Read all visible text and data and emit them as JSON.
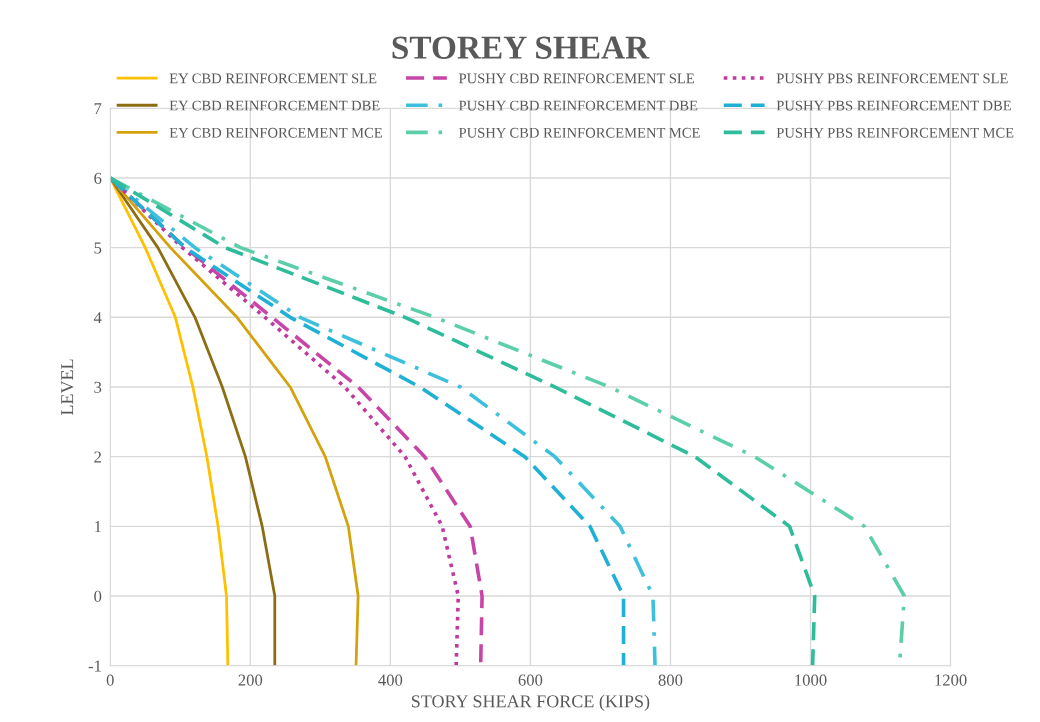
{
  "chart_data": {
    "type": "line",
    "title": "STOREY SHEAR",
    "xlabel": "STORY SHEAR FORCE (KIPS)",
    "ylabel": "LEVEL",
    "xlim": [
      0,
      1200
    ],
    "xticks": [
      0,
      200,
      400,
      600,
      800,
      1000,
      1200
    ],
    "ylim": [
      -1,
      7
    ],
    "yticks": [
      -1,
      0,
      1,
      2,
      3,
      4,
      5,
      6,
      7
    ],
    "grid": true,
    "legend": "top",
    "marker": "none",
    "series": [
      {
        "name": "EY CBD REINFORCEMENT SLE",
        "color": "#ffc000",
        "line_style": "solid",
        "x": [
          0,
          50,
          93,
          118,
          138,
          154,
          166,
          168
        ],
        "values": [
          6,
          5,
          4,
          3,
          2,
          1,
          0,
          -1
        ]
      },
      {
        "name": "EY CBD REINFORCEMENT DBE",
        "color": "#8c6d12",
        "line_style": "solid",
        "x": [
          0,
          68,
          121,
          160,
          193,
          217,
          235,
          235
        ],
        "values": [
          6,
          5,
          4,
          3,
          2,
          1,
          0,
          -1
        ]
      },
      {
        "name": "EY CBD REINFORCEMENT MCE",
        "color": "#d4a20c",
        "line_style": "solid",
        "x": [
          0,
          86,
          181,
          257,
          307,
          340,
          354,
          351
        ],
        "values": [
          6,
          5,
          4,
          3,
          2,
          1,
          0,
          -1
        ]
      },
      {
        "name": "PUSHY CBD REINFORCEMENT SLE",
        "color": "#c845a8",
        "line_style": "dashed",
        "x": [
          0,
          107,
          231,
          354,
          449,
          514,
          531,
          529
        ],
        "values": [
          6,
          5,
          4,
          3,
          2,
          1,
          0,
          -1
        ]
      },
      {
        "name": "PUSHY CBD REINFORCEMENT DBE",
        "color": "#3cc0dc",
        "line_style": "dashdot",
        "x": [
          0,
          121,
          271,
          500,
          635,
          728,
          775,
          778
        ],
        "values": [
          6,
          5,
          4,
          3,
          2,
          1,
          0,
          -1
        ]
      },
      {
        "name": "PUSHY CBD REINFORCEMENT MCE",
        "color": "#5ccfaa",
        "line_style": "dashdot",
        "x": [
          0,
          186,
          464,
          713,
          920,
          1077,
          1134,
          1127
        ],
        "values": [
          6,
          5,
          4,
          3,
          2,
          1,
          0,
          -1
        ]
      },
      {
        "name": "PUSHY PBS REINFORCEMENT SLE",
        "color": "#c03a9e",
        "line_style": "dotted",
        "x": [
          0,
          103,
          221,
          335,
          421,
          474,
          497,
          494
        ],
        "values": [
          6,
          5,
          4,
          3,
          2,
          1,
          0,
          -1
        ]
      },
      {
        "name": "PUSHY PBS REINFORCEMENT DBE",
        "color": "#1fb0d6",
        "line_style": "dashed",
        "x": [
          0,
          107,
          257,
          442,
          592,
          685,
          733,
          733
        ],
        "values": [
          6,
          5,
          4,
          3,
          2,
          1,
          0,
          -1
        ]
      },
      {
        "name": "PUSHY PBS REINFORCEMENT MCE",
        "color": "#2ebd9a",
        "line_style": "dashed",
        "x": [
          0,
          164,
          421,
          635,
          835,
          970,
          1006,
          1003
        ],
        "values": [
          6,
          5,
          4,
          3,
          2,
          1,
          0,
          -1
        ]
      }
    ]
  }
}
